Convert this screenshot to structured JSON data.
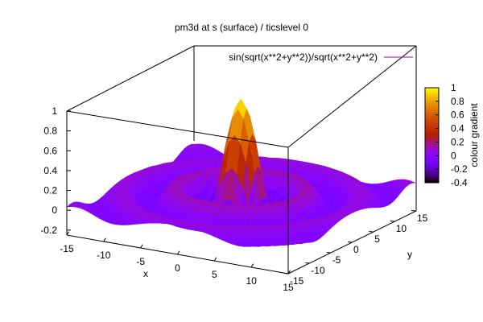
{
  "chart_data": {
    "type": "surface",
    "title": "pm3d at s (surface) / ticslevel 0",
    "legend": {
      "label": "sin(sqrt(x**2+y**2))/sqrt(x**2+y**2)",
      "color": "#9400d3",
      "placement": "top-right"
    },
    "function": "sin(sqrt(x**2+y**2))/sqrt(x**2+y**2)",
    "xlabel": "x",
    "ylabel": "y",
    "xlim": [
      -15,
      15
    ],
    "ylim": [
      -15,
      15
    ],
    "zlim": [
      -0.25,
      1
    ],
    "x_ticks": [
      -15,
      -10,
      -5,
      0,
      5,
      10,
      15
    ],
    "y_ticks": [
      -15,
      -10,
      -5,
      0,
      5,
      10,
      15
    ],
    "z_ticks": [
      -0.2,
      0,
      0.2,
      0.4,
      0.6,
      0.8,
      1
    ],
    "grid_samples": 41,
    "colorbar": {
      "label": "colour gradient",
      "range": [
        -0.4,
        1
      ],
      "ticks": [
        -0.4,
        -0.2,
        0,
        0.2,
        0.4,
        0.6,
        0.8,
        1
      ],
      "palette": "rgbformulae 7,5,15 (black-blue-purple-red-orange-yellow)"
    },
    "grid": false
  }
}
